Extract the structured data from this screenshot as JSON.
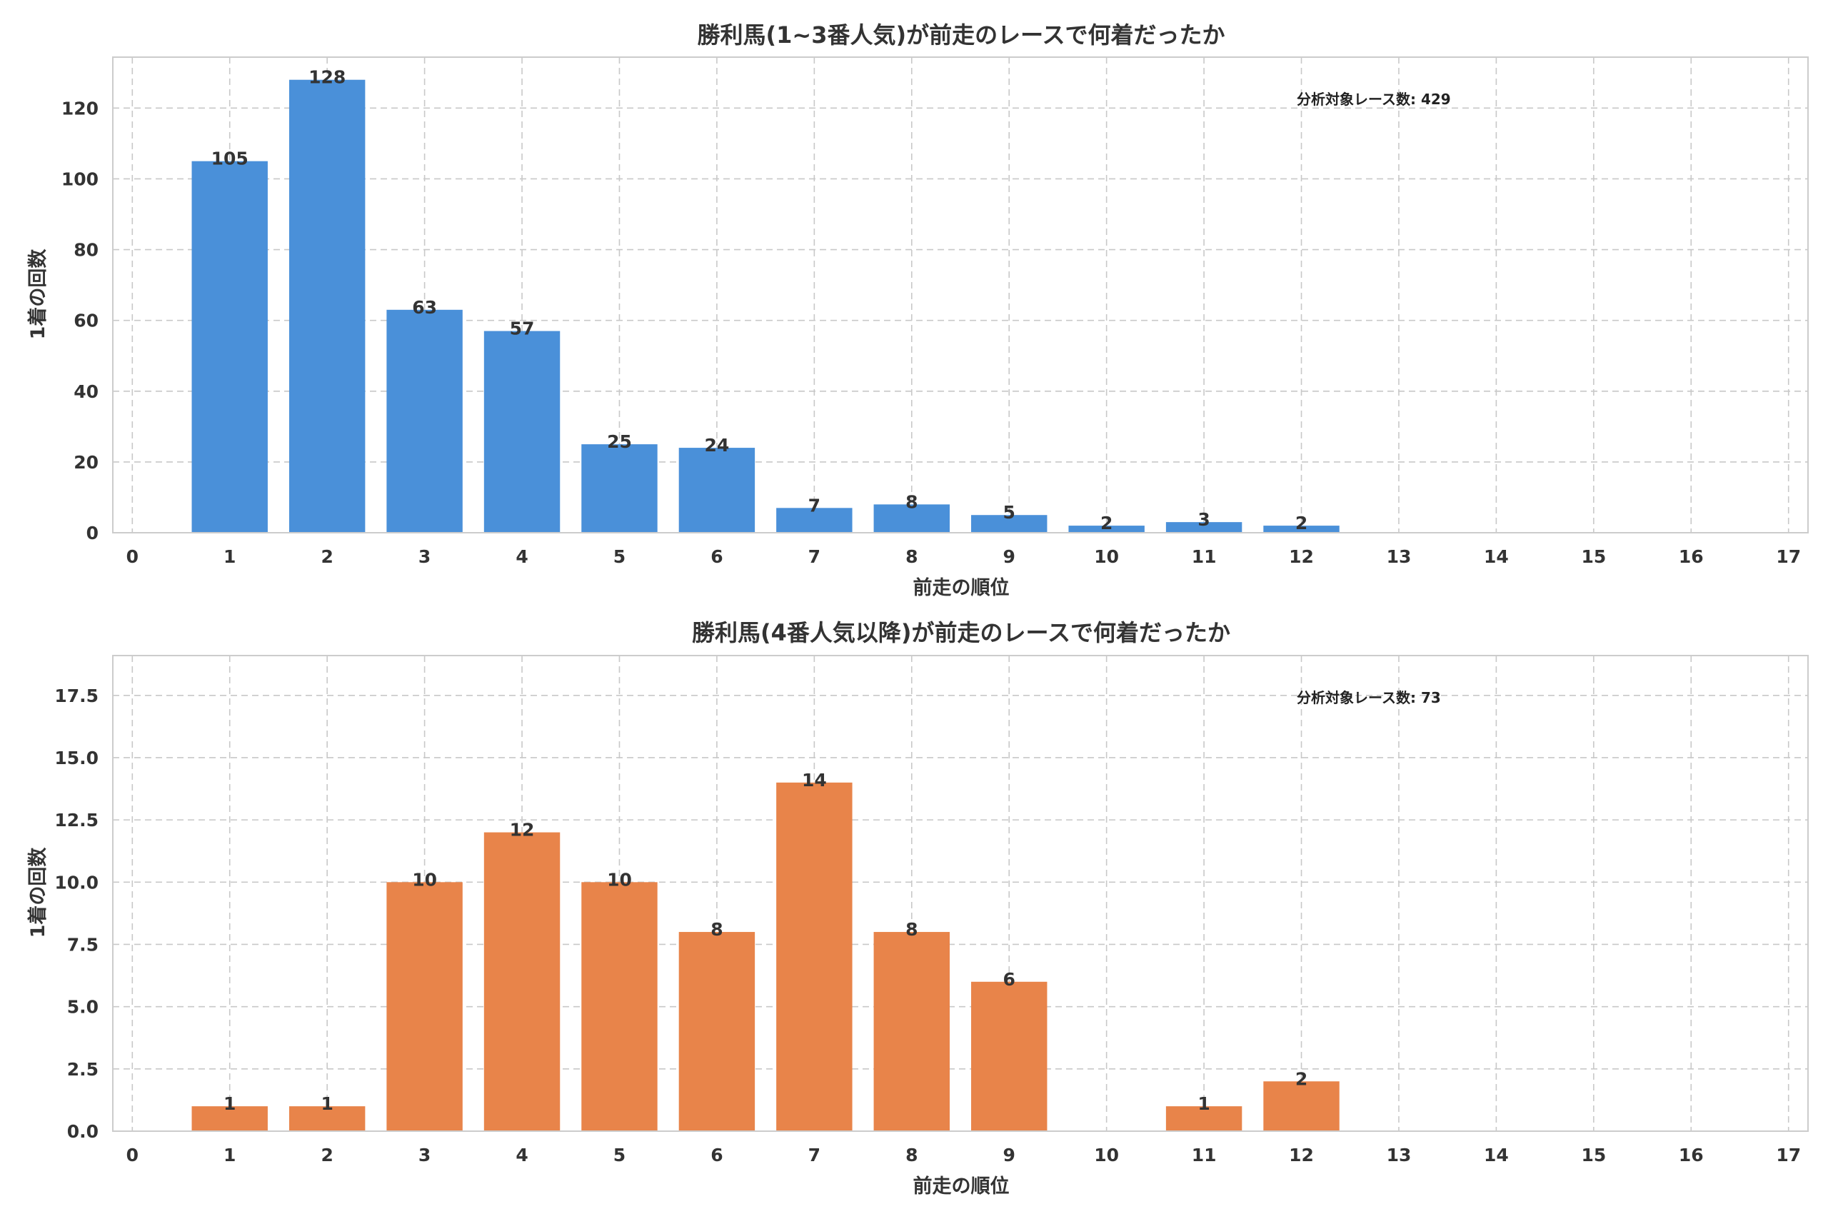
{
  "chart_data": [
    {
      "type": "bar",
      "title": "勝利馬(1~3番人気)が前走のレースで何着だったか",
      "xlabel": "前走の順位",
      "ylabel": "1着の回数",
      "x": [
        1,
        2,
        3,
        4,
        5,
        6,
        7,
        8,
        9,
        10,
        11,
        12
      ],
      "values": [
        105,
        128,
        63,
        57,
        25,
        24,
        7,
        8,
        5,
        2,
        3,
        2
      ],
      "value_labels": [
        "105",
        "128",
        "63",
        "57",
        "25",
        "24",
        "7",
        "8",
        "5",
        "2",
        "3",
        "2"
      ],
      "xlim": [
        -0.2,
        17.2
      ],
      "ylim": [
        0,
        134.4
      ],
      "xticks": [
        "0",
        "1",
        "2",
        "3",
        "4",
        "5",
        "6",
        "7",
        "8",
        "9",
        "10",
        "11",
        "12",
        "13",
        "14",
        "15",
        "16",
        "17"
      ],
      "yticks": [
        "0",
        "20",
        "40",
        "60",
        "80",
        "100",
        "120"
      ],
      "annotation": "分析対象レース数: 429",
      "grid": true,
      "color": "#4a90d9"
    },
    {
      "type": "bar",
      "title": "勝利馬(4番人気以降)が前走のレースで何着だったか",
      "xlabel": "前走の順位",
      "ylabel": "1着の回数",
      "x": [
        1,
        2,
        3,
        4,
        5,
        6,
        7,
        8,
        9,
        11,
        12
      ],
      "values": [
        1,
        1,
        10,
        12,
        10,
        8,
        14,
        8,
        6,
        1,
        2
      ],
      "value_labels": [
        "1",
        "1",
        "10",
        "12",
        "10",
        "8",
        "14",
        "8",
        "6",
        "1",
        "2"
      ],
      "xlim": [
        -0.2,
        17.2
      ],
      "ylim": [
        0,
        19.1
      ],
      "xticks": [
        "0",
        "1",
        "2",
        "3",
        "4",
        "5",
        "6",
        "7",
        "8",
        "9",
        "10",
        "11",
        "12",
        "13",
        "14",
        "15",
        "16",
        "17"
      ],
      "yticks": [
        "0.0",
        "2.5",
        "5.0",
        "7.5",
        "10.0",
        "12.5",
        "15.0",
        "17.5"
      ],
      "annotation": "分析対象レース数: 73",
      "grid": true,
      "color": "#e8844a"
    }
  ]
}
